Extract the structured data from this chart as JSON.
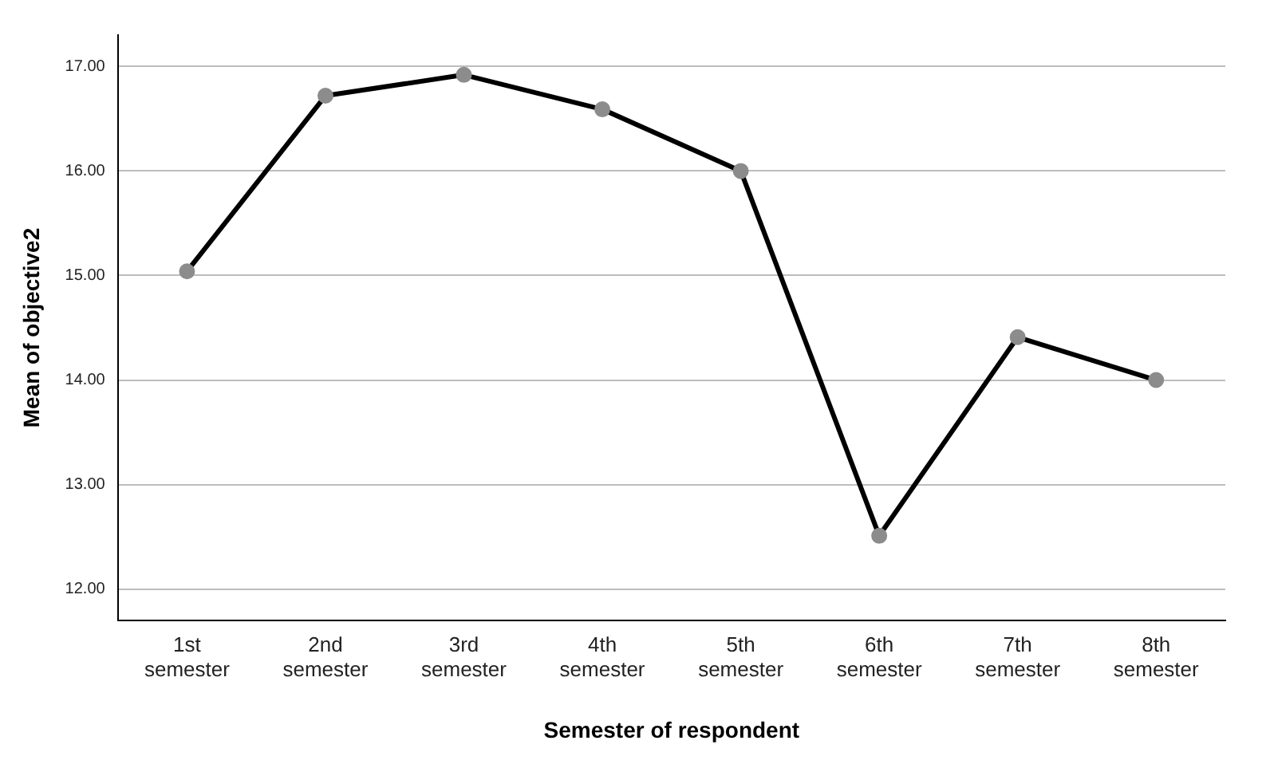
{
  "chart_data": {
    "type": "line",
    "xlabel": "Semester of respondent",
    "ylabel": "Mean of objective2",
    "categories": [
      "1st semester",
      "2nd semester",
      "3rd semester",
      "4th semester",
      "5th semester",
      "6th semester",
      "7th semester",
      "8th semester"
    ],
    "series": [
      {
        "color": "#000000",
        "values": [
          15.04,
          16.72,
          16.92,
          16.59,
          16.0,
          12.51,
          14.41,
          14.0
        ]
      }
    ],
    "ylim": [
      11.7,
      17.3
    ],
    "yticks": [
      {
        "value": 12,
        "label": "12.00"
      },
      {
        "value": 13,
        "label": "13.00"
      },
      {
        "value": 14,
        "label": "14.00"
      },
      {
        "value": 15,
        "label": "15.00"
      },
      {
        "value": 16,
        "label": "16.00"
      },
      {
        "value": 17,
        "label": "17.00"
      }
    ],
    "grid": "y",
    "marker": "circle",
    "legend": false
  }
}
